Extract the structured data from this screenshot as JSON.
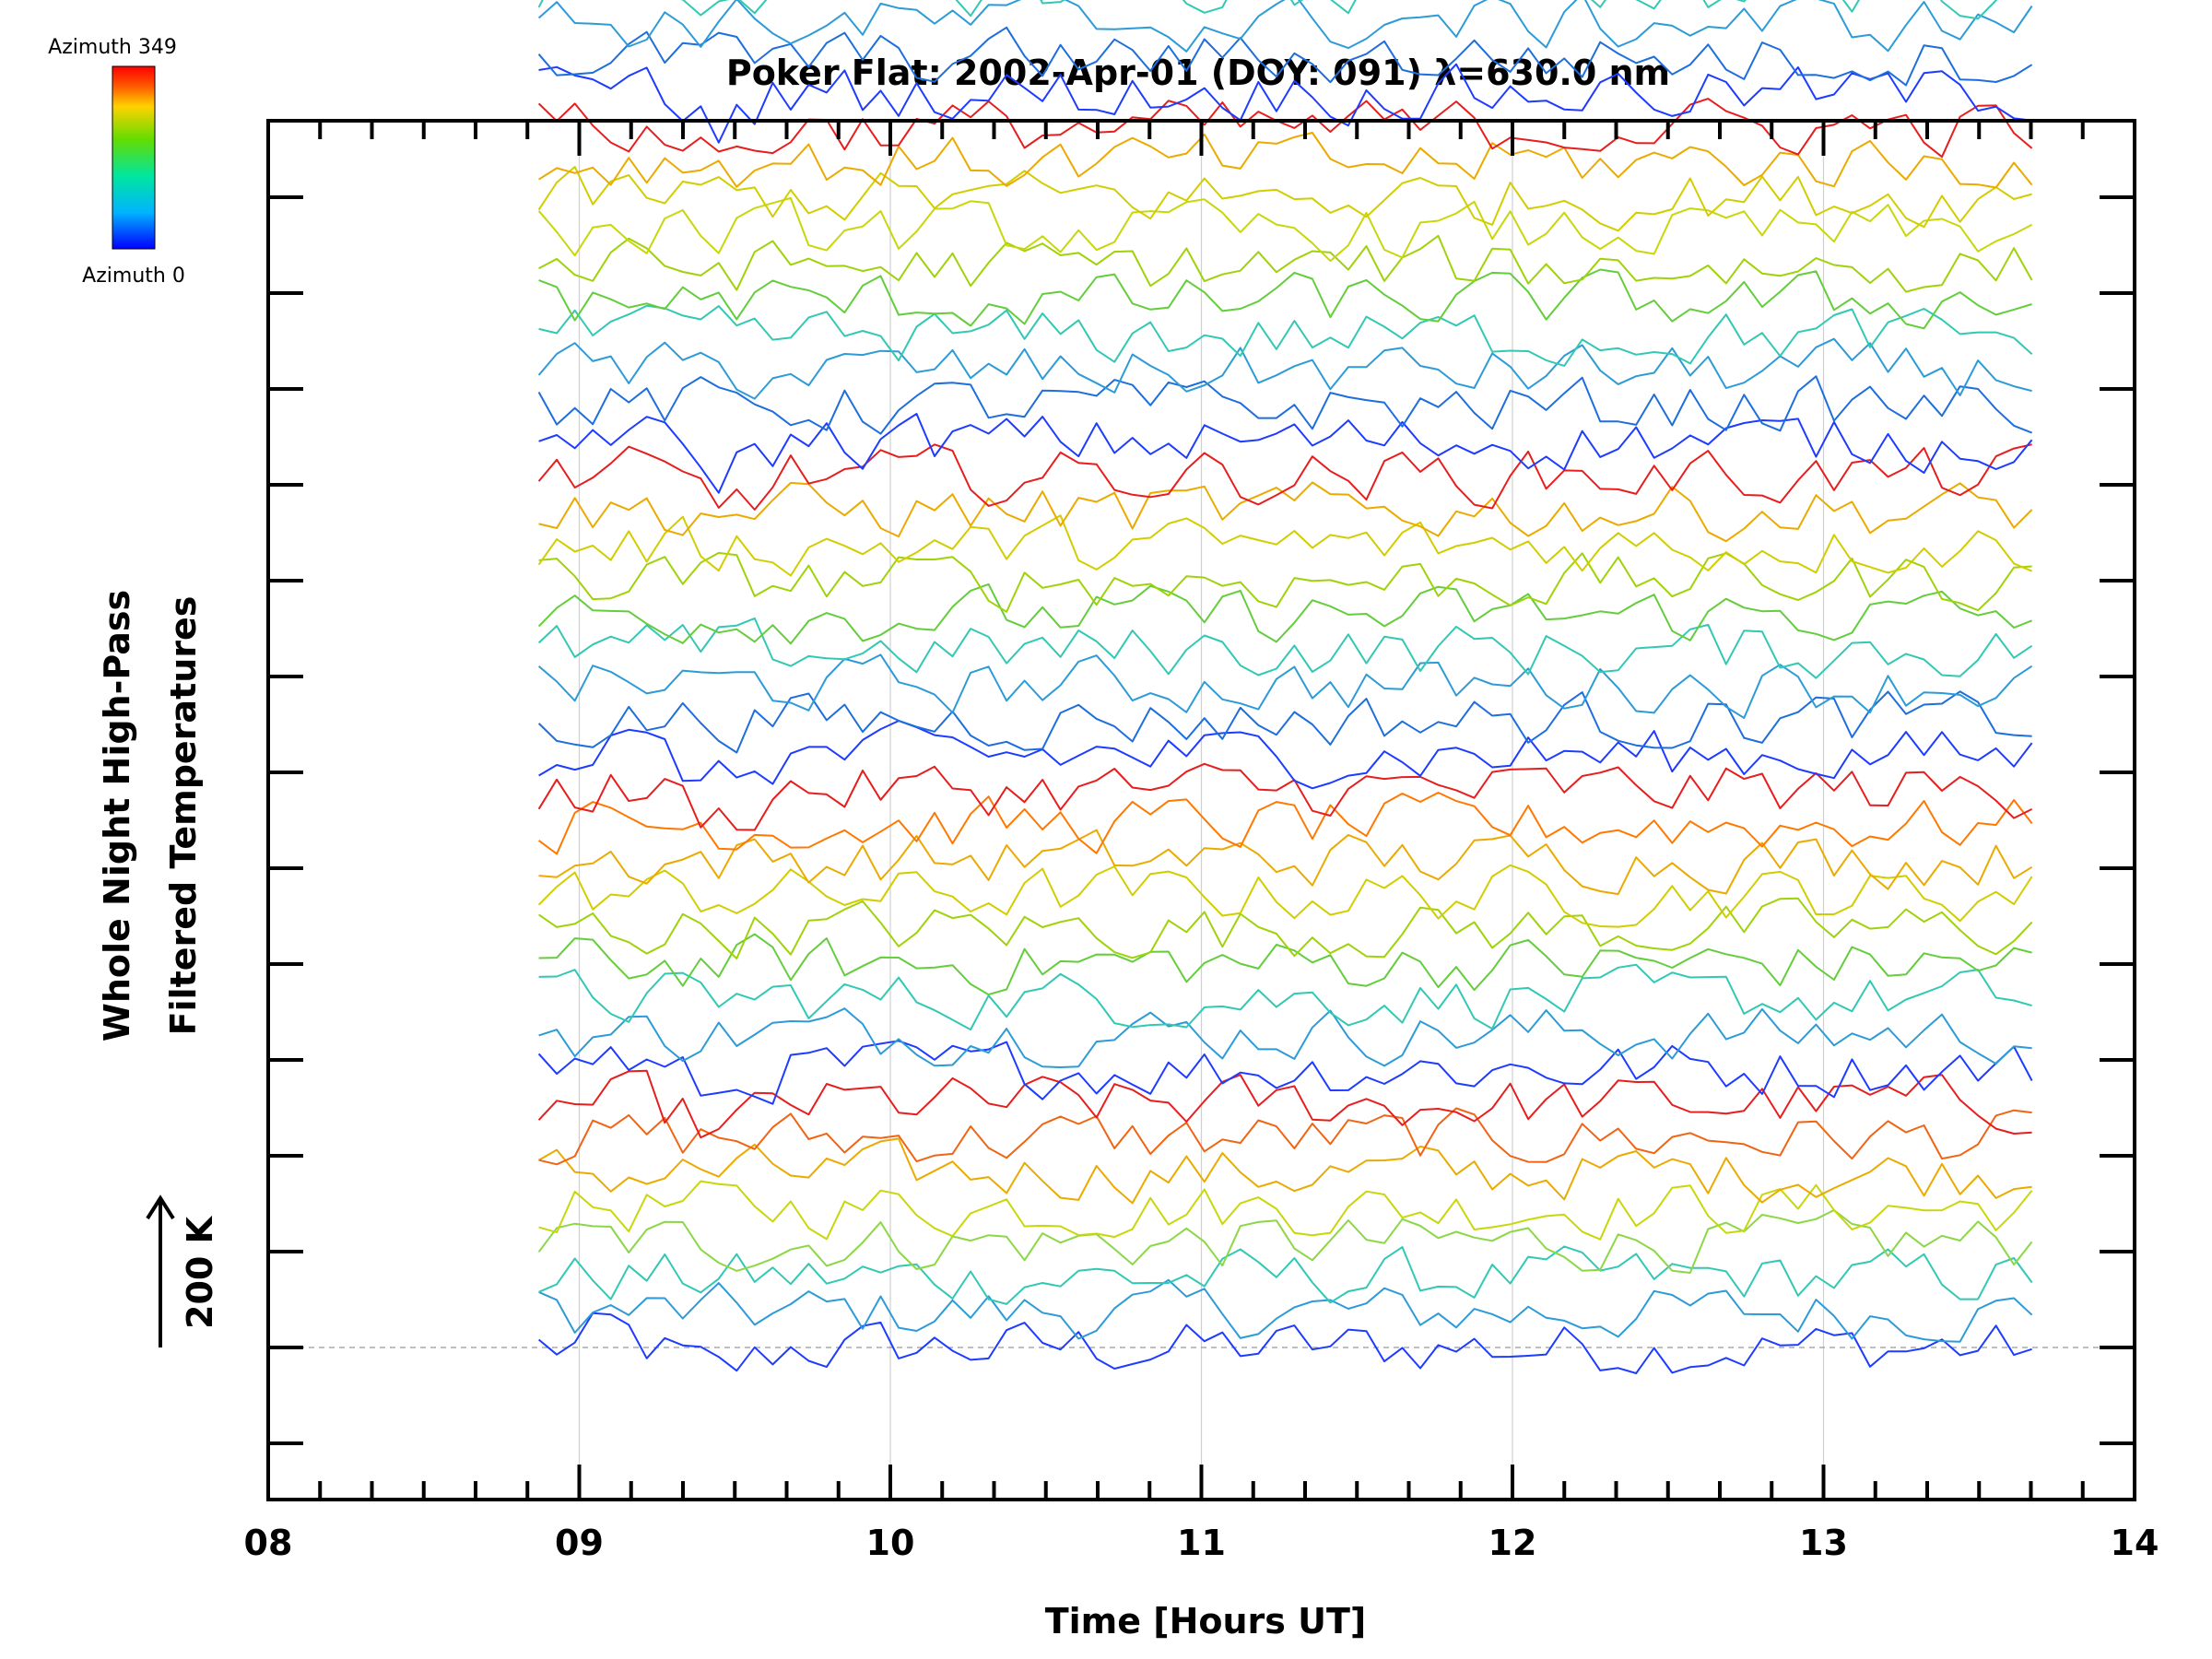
{
  "chart_data": {
    "type": "line",
    "title": "Poker Flat: 2002-Apr-01 (DOY: 091) λ=630.0 nm",
    "xlabel": "Time [Hours UT]",
    "ylabel": [
      "Whole Night High-Pass",
      "Filtered Temperatures"
    ],
    "xlim": [
      8,
      14
    ],
    "x_ticks": [
      "08",
      "09",
      "10",
      "11",
      "12",
      "13",
      "14"
    ],
    "x_start": 8.87,
    "x_end": 13.67,
    "n_series": 48,
    "series_spacing_k": 50,
    "y_major_tick_k": 100,
    "noise_amplitude_k": 15,
    "scale_bar_label": "200 K",
    "scale_bar_k": 200,
    "colorbar": {
      "top_label": "Azimuth 349",
      "bottom_label": "Azimuth 0",
      "colors": [
        "#0000ff",
        "#00b4ff",
        "#00e6a0",
        "#64dc00",
        "#ffd200",
        "#ff5000",
        "#ff0000"
      ]
    },
    "vertical_grid": true,
    "baseline_dashed": true,
    "series_colors": [
      "#1e3cff",
      "#2d9bd7",
      "#32c8b4",
      "#8cd746",
      "#c8d70a",
      "#ebaa00",
      "#f06414",
      "#e61e1e",
      "#1e3cff",
      "#2d9bd7",
      "#32c8b4",
      "#64cd3c",
      "#a0d20a",
      "#d2cd00",
      "#ebaa00",
      "#ff7800",
      "#e61e1e",
      "#1e3cff",
      "#1e6edc",
      "#2d9bd7",
      "#32c8b4",
      "#64cd3c",
      "#a0d20a",
      "#d2cd00",
      "#ebaa00",
      "#e61e1e",
      "#1e3cff",
      "#1e6edc",
      "#2d9bd7",
      "#32c8b4",
      "#64cd3c",
      "#a0d20a",
      "#c8d70a",
      "#d2cd00",
      "#ebaa00",
      "#e61e1e",
      "#1e3cff",
      "#1e6edc",
      "#2d9bd7",
      "#32c8b4",
      "#64cd3c",
      "#a0d20a",
      "#d2cd00",
      "#ebaa00",
      "#f06414",
      "#e61e1e",
      "#1e3cff",
      "#3296e6"
    ]
  }
}
